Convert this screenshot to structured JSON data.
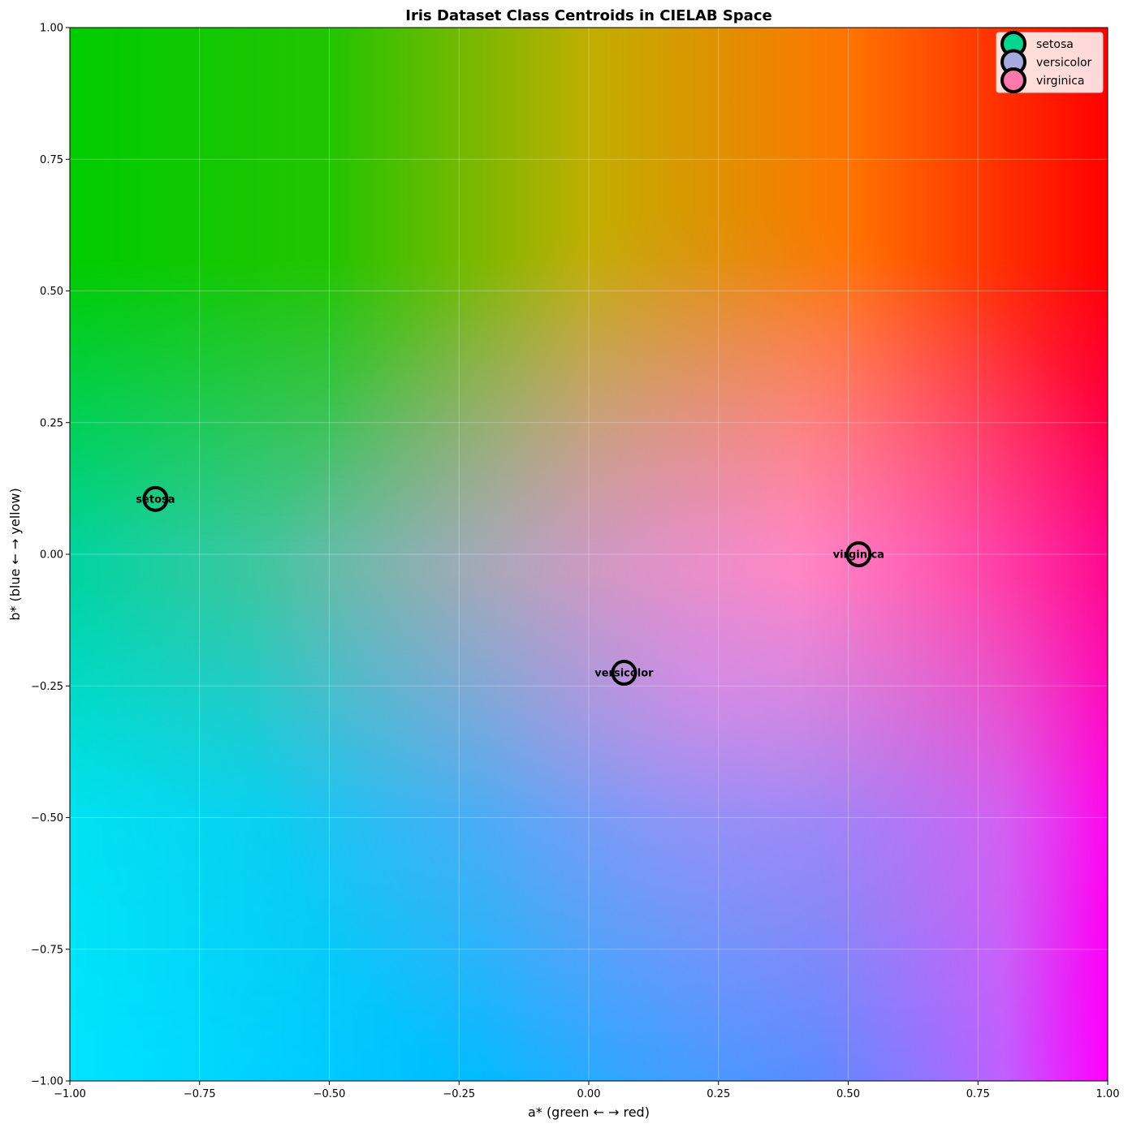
{
  "chart_data": {
    "type": "scatter",
    "title": "Iris Dataset Class Centroids in CIELAB Space",
    "xlabel": "a* (green ← → red)",
    "ylabel": "b* (blue ← → yellow)",
    "xlim": [
      -1.0,
      1.0
    ],
    "ylim": [
      -1.0,
      1.0
    ],
    "xticks": [
      -1.0,
      -0.75,
      -0.5,
      -0.25,
      0.0,
      0.25,
      0.5,
      0.75,
      1.0
    ],
    "yticks": [
      -1.0,
      -0.75,
      -0.5,
      -0.25,
      0.0,
      0.25,
      0.5,
      0.75,
      1.0
    ],
    "xtick_labels": [
      "−1.00",
      "−0.75",
      "−0.50",
      "−0.25",
      "0.00",
      "0.25",
      "0.50",
      "0.75",
      "1.00"
    ],
    "ytick_labels": [
      "−1.00",
      "−0.75",
      "−0.50",
      "−0.25",
      "0.00",
      "0.25",
      "0.50",
      "0.75",
      "1.00"
    ],
    "grid": true,
    "legend_position": "top-right",
    "background": "CIELAB a*-b* color plane",
    "series": [
      {
        "name": "setosa",
        "x": -0.835,
        "y": 0.105,
        "color": "#00d68f",
        "label": "setosa"
      },
      {
        "name": "versicolor",
        "x": 0.068,
        "y": -0.225,
        "color": "#a7aadf",
        "label": "versicolor"
      },
      {
        "name": "virginica",
        "x": 0.52,
        "y": 0.0,
        "color": "#ff7aaa",
        "label": "virginica"
      }
    ]
  }
}
